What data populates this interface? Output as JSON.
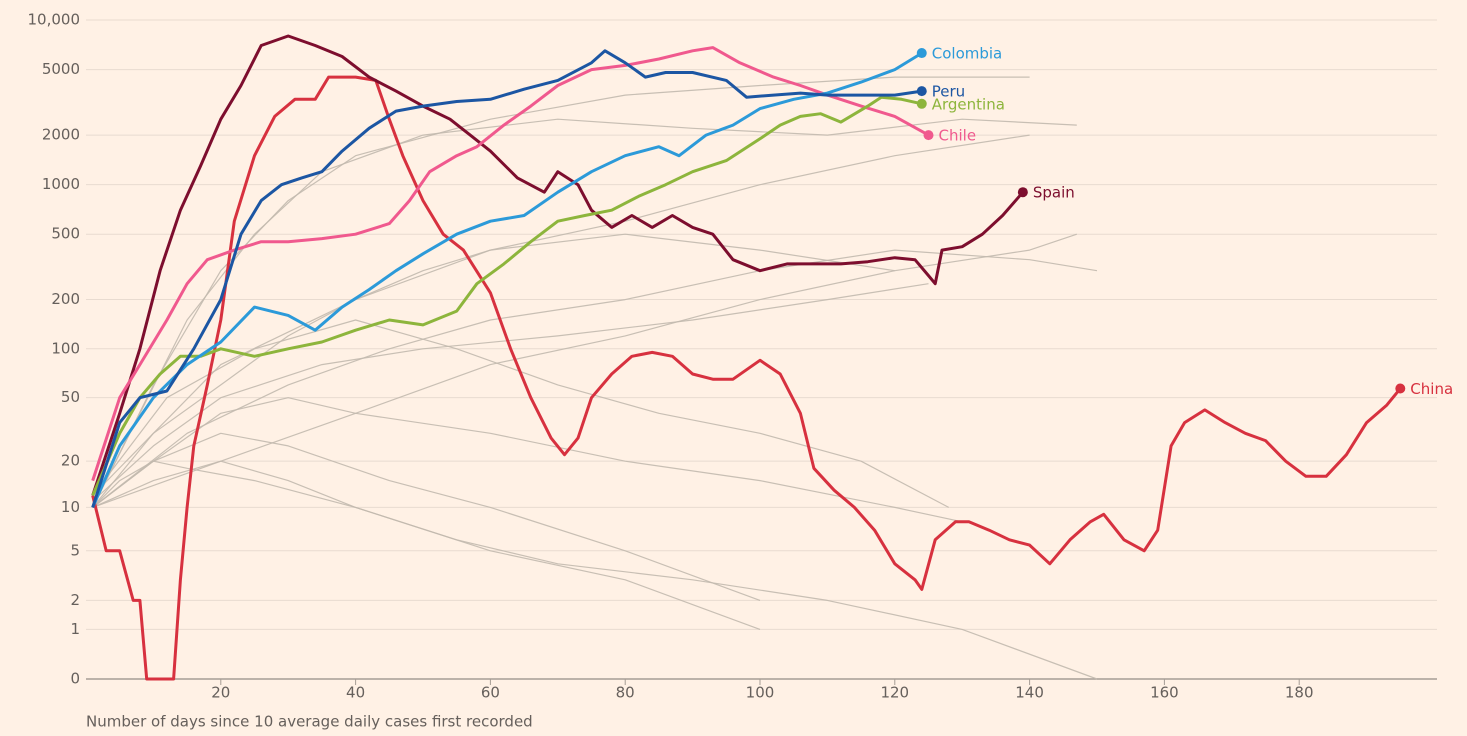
{
  "chart_data": {
    "type": "line",
    "yscale": "log1p",
    "xlabel": "Number of days since 10 average daily cases first recorded",
    "xlim": [
      0,
      200
    ],
    "xticks": [
      20,
      40,
      60,
      80,
      100,
      120,
      140,
      160,
      180
    ],
    "ylim": [
      0,
      10000
    ],
    "yticks": [
      0,
      1,
      2,
      5,
      10,
      20,
      50,
      100,
      200,
      500,
      1000,
      2000,
      5000,
      {
        "value": 10000,
        "label": "10,000"
      }
    ],
    "grid": true,
    "series": [
      {
        "color": "#c2b9ae",
        "x": [
          1,
          10,
          20,
          30,
          40,
          60,
          80,
          100,
          120,
          140
        ],
        "values": [
          10,
          60,
          300,
          800,
          1500,
          2500,
          3500,
          4000,
          4500,
          4500
        ]
      },
      {
        "color": "#c2b9ae",
        "x": [
          1,
          10,
          20,
          30,
          40,
          50,
          60,
          80,
          100,
          120
        ],
        "values": [
          12,
          30,
          60,
          120,
          200,
          300,
          400,
          500,
          400,
          300
        ]
      },
      {
        "color": "#c2b9ae",
        "x": [
          1,
          10,
          20,
          30,
          40,
          60,
          80,
          100,
          120,
          130
        ],
        "values": [
          10,
          20,
          40,
          50,
          40,
          30,
          20,
          15,
          10,
          8
        ]
      },
      {
        "color": "#c2b9ae",
        "x": [
          1,
          10,
          20,
          30,
          40,
          60,
          80,
          100
        ],
        "values": [
          10,
          15,
          20,
          15,
          10,
          5,
          3,
          1
        ]
      },
      {
        "color": "#c2b9ae",
        "x": [
          1,
          8,
          15,
          25,
          35,
          50,
          70,
          90,
          110,
          130,
          147
        ],
        "values": [
          10,
          40,
          150,
          500,
          1200,
          2000,
          2500,
          2200,
          2000,
          2500,
          2300
        ]
      },
      {
        "color": "#c2b9ae",
        "x": [
          1,
          10,
          20,
          35,
          50,
          70,
          90,
          110,
          125
        ],
        "values": [
          11,
          25,
          50,
          80,
          100,
          120,
          150,
          200,
          250
        ]
      },
      {
        "color": "#c2b9ae",
        "x": [
          1,
          15,
          30,
          45,
          60,
          80,
          100,
          120,
          140,
          150
        ],
        "values": [
          10,
          30,
          60,
          100,
          150,
          200,
          300,
          400,
          350,
          300
        ]
      },
      {
        "color": "#c2b9ae",
        "x": [
          1,
          10,
          20,
          30,
          45,
          60,
          80,
          100
        ],
        "values": [
          10,
          20,
          30,
          25,
          15,
          10,
          5,
          2
        ]
      },
      {
        "color": "#c2b9ae",
        "x": [
          1,
          12,
          25,
          40,
          55,
          70,
          85,
          100,
          115,
          128
        ],
        "values": [
          12,
          50,
          100,
          150,
          100,
          60,
          40,
          30,
          20,
          10
        ]
      },
      {
        "color": "#c2b9ae",
        "x": [
          1,
          20,
          40,
          60,
          80,
          100,
          120,
          140,
          147
        ],
        "values": [
          10,
          20,
          40,
          80,
          120,
          200,
          300,
          400,
          500
        ]
      },
      {
        "color": "#c2b9ae",
        "x": [
          1,
          5,
          10,
          15,
          25,
          40,
          55,
          70,
          90,
          110,
          130,
          150
        ],
        "values": [
          10,
          15,
          20,
          18,
          15,
          10,
          6,
          4,
          3,
          2,
          1,
          0
        ]
      },
      {
        "color": "#c2b9ae",
        "x": [
          1,
          10,
          20,
          40,
          60,
          80,
          100,
          120,
          140
        ],
        "values": [
          10,
          30,
          80,
          200,
          400,
          600,
          1000,
          1500,
          2000
        ]
      },
      {
        "name": "China",
        "color": "#d7313f",
        "x": [
          1,
          3,
          5,
          7,
          8,
          9,
          10,
          12,
          13,
          14,
          15,
          16,
          18,
          20,
          22,
          25,
          28,
          31,
          34,
          36,
          40,
          43,
          45,
          47,
          50,
          53,
          56,
          60,
          63,
          66,
          69,
          71,
          73,
          75,
          78,
          81,
          84,
          87,
          90,
          93,
          96,
          100,
          103,
          106,
          108,
          111,
          114,
          117,
          120,
          123,
          124,
          126,
          129,
          131,
          134,
          137,
          140,
          143,
          146,
          149,
          151,
          154,
          157,
          159,
          161,
          163,
          166,
          169,
          172,
          175,
          178,
          181,
          184,
          187,
          190,
          193,
          195
        ],
        "values": [
          12,
          5,
          5,
          2,
          2,
          0,
          0,
          0,
          0,
          3,
          10,
          25,
          60,
          150,
          600,
          1500,
          2600,
          3300,
          3300,
          4500,
          4500,
          4300,
          2500,
          1500,
          800,
          500,
          400,
          220,
          100,
          50,
          28,
          22,
          28,
          50,
          70,
          90,
          95,
          90,
          70,
          65,
          65,
          85,
          70,
          40,
          18,
          13,
          10,
          7,
          4,
          3,
          2.5,
          6,
          8,
          8,
          7,
          6,
          5.5,
          4,
          6,
          8,
          9,
          6,
          5,
          7,
          25,
          35,
          42,
          35,
          30,
          27,
          20,
          16,
          16,
          22,
          35,
          45,
          57
        ]
      },
      {
        "name": "Spain",
        "color": "#7d0e2e",
        "x": [
          1,
          5,
          8,
          11,
          14,
          17,
          20,
          23,
          26,
          30,
          34,
          38,
          42,
          46,
          50,
          54,
          57,
          60,
          64,
          68,
          70,
          73,
          75,
          78,
          81,
          84,
          87,
          90,
          93,
          96,
          100,
          104,
          108,
          112,
          116,
          120,
          123,
          125,
          126,
          127,
          130,
          133,
          136,
          139
        ],
        "values": [
          12,
          40,
          100,
          300,
          700,
          1300,
          2500,
          4000,
          7000,
          8000,
          7000,
          6000,
          4500,
          3700,
          3000,
          2500,
          2000,
          1600,
          1100,
          900,
          1200,
          1000,
          700,
          550,
          650,
          550,
          650,
          550,
          500,
          350,
          300,
          330,
          330,
          330,
          340,
          360,
          350,
          280,
          250,
          400,
          420,
          500,
          650,
          900
        ]
      },
      {
        "name": "Chile",
        "color": "#f0598e",
        "x": [
          1,
          5,
          8,
          12,
          15,
          18,
          22,
          26,
          30,
          35,
          40,
          45,
          48,
          51,
          55,
          58,
          62,
          66,
          70,
          75,
          80,
          85,
          90,
          93,
          97,
          102,
          106,
          110,
          115,
          120,
          125
        ],
        "values": [
          15,
          50,
          80,
          150,
          250,
          350,
          400,
          450,
          450,
          470,
          500,
          580,
          800,
          1200,
          1500,
          1700,
          2300,
          3000,
          4000,
          5000,
          5300,
          5800,
          6500,
          6800,
          5500,
          4500,
          4000,
          3500,
          3000,
          2600,
          2000
        ]
      },
      {
        "name": "Argentina",
        "color": "#8db53c",
        "x": [
          1,
          5,
          8,
          11,
          14,
          17,
          20,
          25,
          30,
          35,
          40,
          45,
          50,
          55,
          58,
          62,
          66,
          70,
          74,
          78,
          82,
          86,
          90,
          95,
          100,
          103,
          106,
          109,
          112,
          116,
          118,
          121,
          124
        ],
        "values": [
          12,
          30,
          50,
          70,
          90,
          90,
          100,
          90,
          100,
          110,
          130,
          150,
          140,
          170,
          250,
          330,
          450,
          600,
          650,
          700,
          850,
          1000,
          1200,
          1400,
          1900,
          2300,
          2600,
          2700,
          2400,
          3000,
          3400,
          3300,
          3100
        ]
      },
      {
        "name": "Colombia",
        "color": "#2c9ad9",
        "x": [
          1,
          5,
          10,
          15,
          20,
          25,
          30,
          34,
          38,
          42,
          46,
          50,
          55,
          60,
          65,
          70,
          75,
          80,
          85,
          88,
          92,
          96,
          100,
          105,
          110,
          115,
          120,
          124
        ],
        "values": [
          10,
          25,
          50,
          80,
          110,
          180,
          160,
          130,
          180,
          230,
          300,
          380,
          500,
          600,
          650,
          900,
          1200,
          1500,
          1700,
          1500,
          2000,
          2300,
          2900,
          3300,
          3600,
          4200,
          5000,
          6300
        ]
      },
      {
        "name": "Peru",
        "color": "#1c56a3",
        "x": [
          1,
          5,
          8,
          12,
          16,
          20,
          23,
          26,
          29,
          32,
          35,
          38,
          42,
          46,
          50,
          55,
          60,
          65,
          70,
          75,
          77,
          80,
          83,
          86,
          90,
          95,
          98,
          102,
          106,
          110,
          115,
          120,
          124
        ],
        "values": [
          10,
          35,
          50,
          55,
          100,
          200,
          500,
          800,
          1000,
          1100,
          1200,
          1600,
          2200,
          2800,
          3000,
          3200,
          3300,
          3800,
          4300,
          5500,
          6500,
          5500,
          4500,
          4800,
          4800,
          4300,
          3400,
          3500,
          3600,
          3500,
          3500,
          3500,
          3700
        ]
      }
    ]
  }
}
